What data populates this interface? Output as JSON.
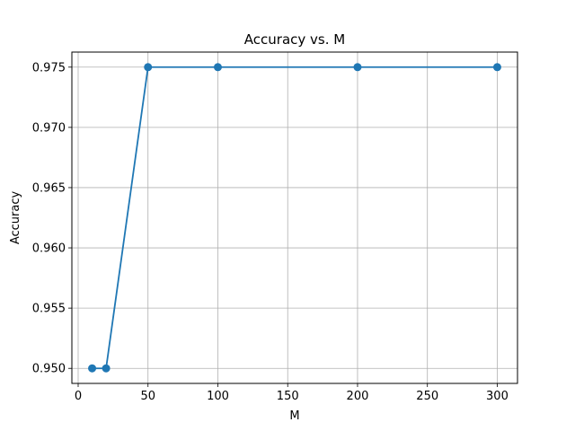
{
  "chart_data": {
    "type": "line",
    "title": "Accuracy vs. M",
    "xlabel": "M",
    "ylabel": "Accuracy",
    "x": [
      10,
      20,
      50,
      100,
      200,
      300
    ],
    "series": [
      {
        "values": [
          0.95,
          0.95,
          0.975,
          0.975,
          0.975,
          0.975
        ],
        "color": "#1f77b4",
        "marker": "circle"
      }
    ],
    "xlim": [
      -4.5,
      314.5
    ],
    "ylim": [
      0.94875,
      0.97625
    ],
    "xticks": [
      0,
      50,
      100,
      150,
      200,
      250,
      300
    ],
    "xtick_labels": [
      "0",
      "50",
      "100",
      "150",
      "200",
      "250",
      "300"
    ],
    "yticks": [
      0.95,
      0.955,
      0.96,
      0.965,
      0.97,
      0.975
    ],
    "ytick_labels": [
      "0.950",
      "0.955",
      "0.960",
      "0.965",
      "0.970",
      "0.975"
    ],
    "grid": true,
    "grid_color": "#b0b0b0",
    "axis_color": "#000000"
  }
}
